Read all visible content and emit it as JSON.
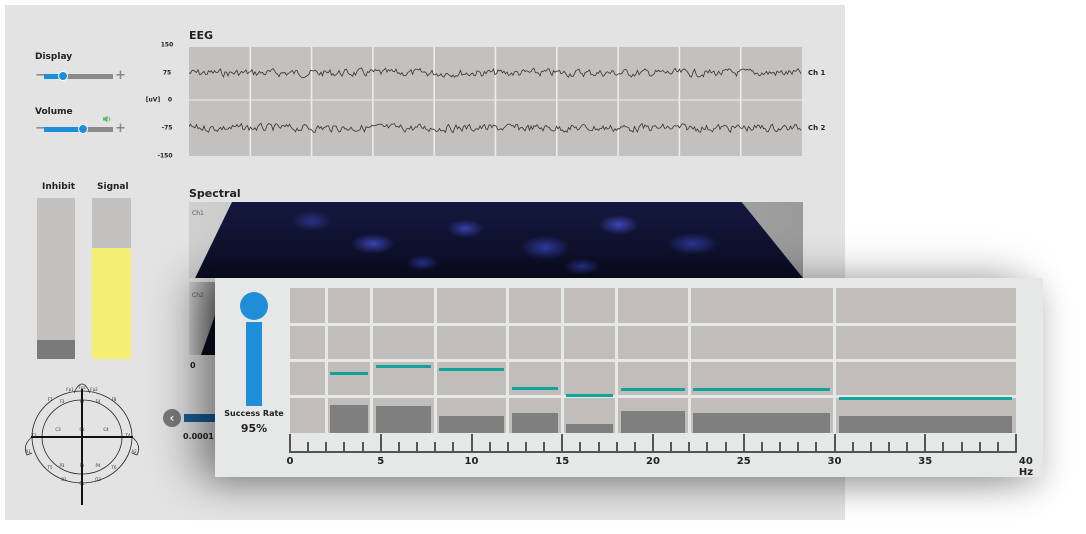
{
  "controls": {
    "display_label": "Display",
    "display_level": 0.27,
    "volume_label": "Volume",
    "volume_level": 0.57,
    "minus": "−",
    "plus": "+",
    "speaker_icon": "speaker-icon",
    "speaker_color": "#5cb85c"
  },
  "meters": {
    "inhibit_label": "Inhibit",
    "inhibit_level": 0.12,
    "signal_label": "Signal",
    "signal_level": 0.69,
    "inhibit_color": "#7a7a7a",
    "signal_color": "#f4ef72"
  },
  "eeg": {
    "title": "EEG",
    "unit": "[uV]",
    "ticks": [
      "150",
      "75",
      "0",
      "-75",
      "-150"
    ],
    "channels": [
      "Ch 1",
      "Ch 2"
    ]
  },
  "spectral": {
    "title": "Spectral",
    "channels": [
      "Ch1",
      "Ch2"
    ],
    "zero": "0",
    "threshold_value": "0.0001"
  },
  "electrodes": [
    "Fp1",
    "Fpz",
    "Fp2",
    "F7",
    "F3",
    "Fz",
    "F4",
    "F8",
    "T3",
    "C3",
    "Cz",
    "C4",
    "T4",
    "T5",
    "P3",
    "Pz",
    "P4",
    "T6",
    "O1",
    "Oz",
    "O2",
    "A1",
    "A2"
  ],
  "success": {
    "label": "Success Rate",
    "value": "95%",
    "color": "#1e8fd6"
  },
  "chart_data": {
    "type": "bar",
    "xlabel": "Hz",
    "xlim": [
      0,
      40
    ],
    "x_ticks": [
      "0",
      "5",
      "10",
      "15",
      "20",
      "25",
      "30",
      "40 Hz"
    ],
    "x_tick_values": [
      0,
      5,
      10,
      15,
      20,
      25,
      30,
      40
    ],
    "extra_tick": "35",
    "bands": [
      [
        2,
        4.5
      ],
      [
        4.5,
        8
      ],
      [
        8,
        12
      ],
      [
        12,
        15
      ],
      [
        15,
        18
      ],
      [
        18,
        22
      ],
      [
        22,
        30
      ],
      [
        30,
        40
      ]
    ],
    "bar_values": [
      0.19,
      0.185,
      0.12,
      0.14,
      0.065,
      0.155,
      0.14,
      0.12
    ],
    "threshold_values": [
      0.41,
      0.46,
      0.44,
      0.31,
      0.26,
      0.3,
      0.3,
      0.235
    ],
    "ylim": [
      0,
      1
    ],
    "bar_color": "#7f7f7f",
    "threshold_color": "#12a39a",
    "grid": true
  }
}
